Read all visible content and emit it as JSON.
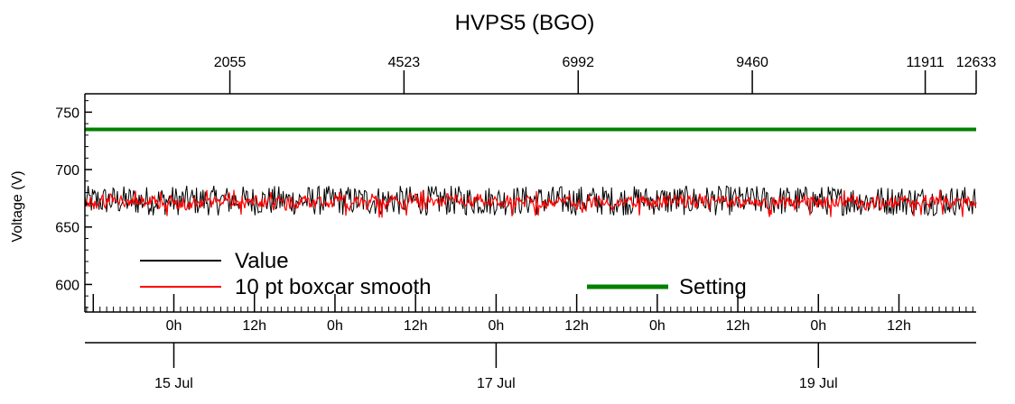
{
  "chart_data": {
    "type": "line",
    "title": "HVPS5 (BGO)",
    "ylabel": "Voltage (V)",
    "ylim": [
      576,
      766
    ],
    "yticks": [
      600,
      650,
      700,
      750
    ],
    "top_axis": {
      "ticks": [
        {
          "label": "2055",
          "value": 2055
        },
        {
          "label": "4523",
          "value": 4523
        },
        {
          "label": "6992",
          "value": 6992
        },
        {
          "label": "9460",
          "value": 9460
        },
        {
          "label": "11911",
          "value": 11911
        },
        {
          "label": "12633",
          "value": 12633
        }
      ],
      "min": 0,
      "max": 12633
    },
    "x_time_range": [
      "2015-07-14 10:45",
      "2015-07-19 23:30"
    ],
    "x_hour_ticks": [
      {
        "label": "0h",
        "time": "2015-07-15 00:00"
      },
      {
        "label": "12h",
        "time": "2015-07-15 12:00"
      },
      {
        "label": "0h",
        "time": "2015-07-16 00:00"
      },
      {
        "label": "12h",
        "time": "2015-07-16 12:00"
      },
      {
        "label": "0h",
        "time": "2015-07-17 00:00"
      },
      {
        "label": "12h",
        "time": "2015-07-17 12:00"
      },
      {
        "label": "0h",
        "time": "2015-07-18 00:00"
      },
      {
        "label": "12h",
        "time": "2015-07-18 12:00"
      },
      {
        "label": "0h",
        "time": "2015-07-19 00:00"
      },
      {
        "label": "12h",
        "time": "2015-07-19 12:00"
      }
    ],
    "x_date_ticks": [
      {
        "label": "15 Jul",
        "time": "2015-07-15 00:00"
      },
      {
        "label": "17 Jul",
        "time": "2015-07-17 00:00"
      },
      {
        "label": "19 Jul",
        "time": "2015-07-19 00:00"
      }
    ],
    "series": [
      {
        "name": "Value",
        "color": "#000000",
        "band": [
          660,
          686
        ],
        "mean": 672
      },
      {
        "name": "10 pt boxcar smooth",
        "color": "#ff0000",
        "band": [
          663,
          680
        ],
        "mean": 672
      },
      {
        "name": "Setting",
        "color": "#008000",
        "constant": 735
      }
    ],
    "legend": "bottom-left"
  }
}
